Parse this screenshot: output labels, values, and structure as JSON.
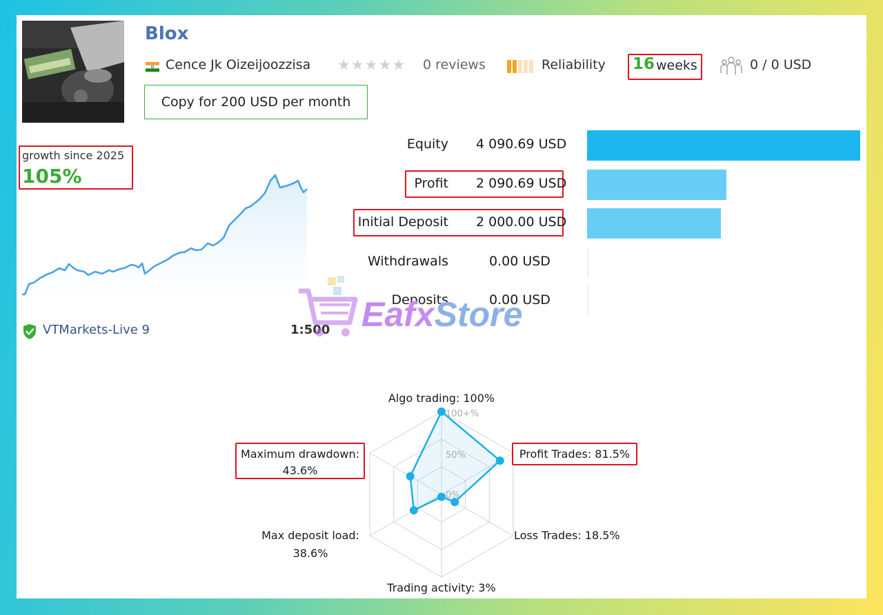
{
  "signal": {
    "name": "Blox",
    "author": "Cence Jk Oizeijoozzisa",
    "reviews": "0 reviews",
    "reliability_label": "Reliability",
    "weeks_number": "16",
    "weeks_unit": "weeks",
    "subscribers": "0 / 0 USD",
    "copy_button": "Copy for 200 USD per month"
  },
  "growth": {
    "label": "growth since 2025",
    "value": "105%",
    "broker": "VTMarkets-Live 9",
    "leverage": "1:500"
  },
  "stats": [
    {
      "label": "Equity",
      "value": "4 090.69 USD",
      "amount": 4090.69
    },
    {
      "label": "Profit",
      "value": "2 090.69 USD",
      "amount": 2090.69
    },
    {
      "label": "Initial Deposit",
      "value": "2 000.00 USD",
      "amount": 2000.0
    },
    {
      "label": "Withdrawals",
      "value": "0.00 USD",
      "amount": 0
    },
    {
      "label": "Deposits",
      "value": "0.00 USD",
      "amount": 0
    }
  ],
  "watermark": {
    "part1": "Eafx",
    "part2": "Store"
  },
  "radar": {
    "axis_labels": {
      "algo": "Algo trading: 100%",
      "profit": "Profit Trades: 81.5%",
      "loss": "Loss Trades: 18.5%",
      "activity": "Trading activity: 3%",
      "load_1": "Max deposit load:",
      "load_2": "38.6%",
      "drawdown_1": "Maximum drawdown:",
      "drawdown_2": "43.6%"
    },
    "scale_labels": [
      "100+%",
      "50%",
      "0%"
    ],
    "values": [
      100,
      81.5,
      18.5,
      3,
      38.6,
      43.6
    ]
  },
  "colors": {
    "accent_green": "#3aaa35",
    "title_blue": "#4a73b3",
    "bar_blue": "#67cdf5",
    "equity_blue": "#1eb6ef",
    "chart_line": "#4aa3df",
    "highlight_red": "#e0141e"
  },
  "icons": {
    "flag": "india-flag-icon",
    "stars": "star-icon",
    "reliability": "reliability-bars-icon",
    "subscribers": "subscribers-icon",
    "broker": "verified-shield-icon",
    "watermark": "shopping-cart-icon"
  }
}
